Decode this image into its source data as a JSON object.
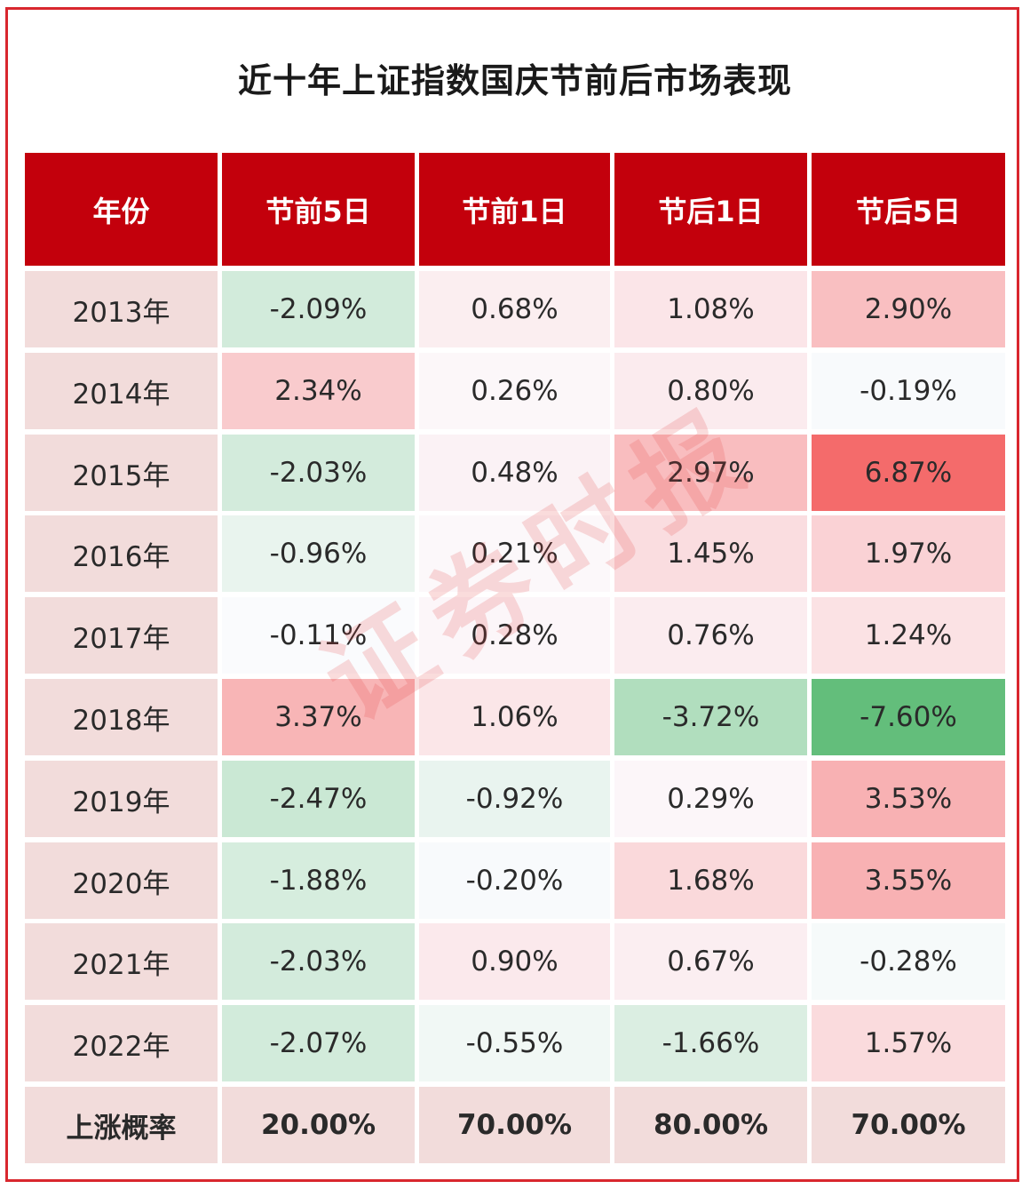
{
  "title": "近十年上证指数国庆节前后市场表现",
  "watermark": "证券时报",
  "chart_data": {
    "type": "table",
    "title": "近十年上证指数国庆节前后市场表现",
    "columns": [
      "年份",
      "节前5日",
      "节前1日",
      "节后1日",
      "节后5日"
    ],
    "rows": [
      {
        "year": "2013年",
        "values": [
          "-2.09%",
          "0.68%",
          "1.08%",
          "2.90%"
        ],
        "numbers": [
          -2.09,
          0.68,
          1.08,
          2.9
        ]
      },
      {
        "year": "2014年",
        "values": [
          "2.34%",
          "0.26%",
          "0.80%",
          "-0.19%"
        ],
        "numbers": [
          2.34,
          0.26,
          0.8,
          -0.19
        ]
      },
      {
        "year": "2015年",
        "values": [
          "-2.03%",
          "0.48%",
          "2.97%",
          "6.87%"
        ],
        "numbers": [
          -2.03,
          0.48,
          2.97,
          6.87
        ]
      },
      {
        "year": "2016年",
        "values": [
          "-0.96%",
          "0.21%",
          "1.45%",
          "1.97%"
        ],
        "numbers": [
          -0.96,
          0.21,
          1.45,
          1.97
        ]
      },
      {
        "year": "2017年",
        "values": [
          "-0.11%",
          "0.28%",
          "0.76%",
          "1.24%"
        ],
        "numbers": [
          -0.11,
          0.28,
          0.76,
          1.24
        ]
      },
      {
        "year": "2018年",
        "values": [
          "3.37%",
          "1.06%",
          "-3.72%",
          "-7.60%"
        ],
        "numbers": [
          3.37,
          1.06,
          -3.72,
          -7.6
        ]
      },
      {
        "year": "2019年",
        "values": [
          "-2.47%",
          "-0.92%",
          "0.29%",
          "3.53%"
        ],
        "numbers": [
          -2.47,
          -0.92,
          0.29,
          3.53
        ]
      },
      {
        "year": "2020年",
        "values": [
          "-1.88%",
          "-0.20%",
          "1.68%",
          "3.55%"
        ],
        "numbers": [
          -1.88,
          -0.2,
          1.68,
          3.55
        ]
      },
      {
        "year": "2021年",
        "values": [
          "-2.03%",
          "0.90%",
          "0.67%",
          "-0.28%"
        ],
        "numbers": [
          -2.03,
          0.9,
          0.67,
          -0.28
        ]
      },
      {
        "year": "2022年",
        "values": [
          "-2.07%",
          "-0.55%",
          "-1.66%",
          "1.57%"
        ],
        "numbers": [
          -2.07,
          -0.55,
          -1.66,
          1.57
        ]
      }
    ],
    "summary": {
      "label": "上涨概率",
      "values": [
        "20.00%",
        "70.00%",
        "80.00%",
        "70.00%"
      ]
    },
    "colors": {
      "header": "#c3000c",
      "year_cell": "#f2dcdb",
      "positive_max": "#f46b6b",
      "negative_max": "#63be7b",
      "neutral": "#fcfcff",
      "border": "#d9272e"
    }
  }
}
